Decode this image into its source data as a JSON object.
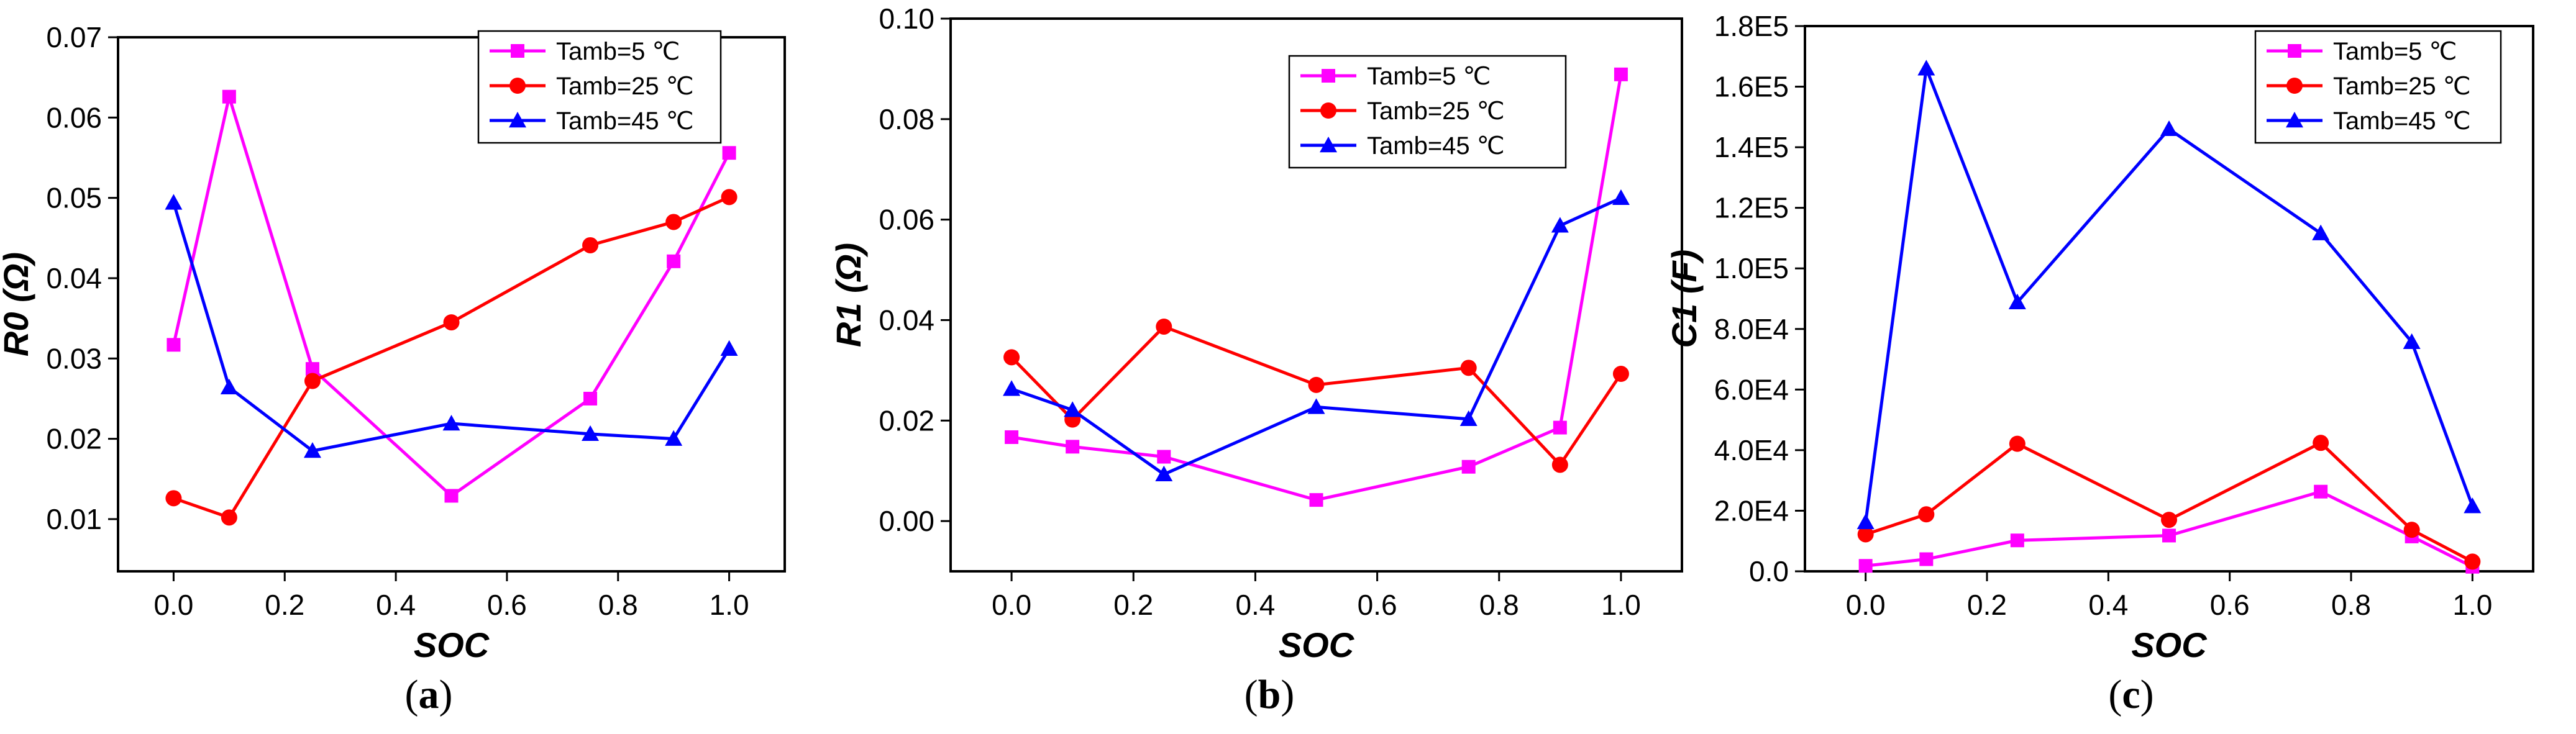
{
  "chart_data": [
    {
      "type": "line",
      "panel_label": "a",
      "xlabel": "SOC",
      "ylabel": "R0 (Ω)",
      "x": [
        0.0,
        0.1,
        0.25,
        0.5,
        0.75,
        0.9,
        1.0
      ],
      "xlim": [
        -0.1,
        1.1
      ],
      "ylim": [
        0.0035,
        0.07
      ],
      "xticks": [
        0.0,
        0.2,
        0.4,
        0.6,
        0.8,
        1.0
      ],
      "xtick_labels": [
        "0.0",
        "0.2",
        "0.4",
        "0.6",
        "0.8",
        "1.0"
      ],
      "yticks": [
        0.01,
        0.02,
        0.03,
        0.04,
        0.05,
        0.06,
        0.07
      ],
      "ytick_labels": [
        "0.01",
        "0.02",
        "0.03",
        "0.04",
        "0.05",
        "0.06",
        "0.07"
      ],
      "legend_position": "top-right",
      "grid": false,
      "series": [
        {
          "name": "Tamb=5 ℃",
          "color": "#ff00ff",
          "marker": "square",
          "values": [
            0.0317,
            0.0626,
            0.0287,
            0.0129,
            0.025,
            0.0421,
            0.0556
          ]
        },
        {
          "name": "Tamb=25 ℃",
          "color": "#ff0000",
          "marker": "circle",
          "values": [
            0.0126,
            0.0102,
            0.0272,
            0.0345,
            0.0441,
            0.047,
            0.0501
          ]
        },
        {
          "name": "Tamb=45 ℃",
          "color": "#0000ff",
          "marker": "triangle",
          "values": [
            0.0494,
            0.0264,
            0.0185,
            0.0219,
            0.0206,
            0.02,
            0.0312
          ]
        }
      ]
    },
    {
      "type": "line",
      "panel_label": "b",
      "xlabel": "SOC",
      "ylabel": "R1 (Ω)",
      "x": [
        0.0,
        0.1,
        0.25,
        0.5,
        0.75,
        0.9,
        1.0
      ],
      "xlim": [
        -0.1,
        1.1
      ],
      "ylim": [
        -0.01,
        0.1
      ],
      "xticks": [
        0.0,
        0.2,
        0.4,
        0.6,
        0.8,
        1.0
      ],
      "xtick_labels": [
        "0.0",
        "0.2",
        "0.4",
        "0.6",
        "0.8",
        "1.0"
      ],
      "yticks": [
        0.0,
        0.02,
        0.04,
        0.06,
        0.08,
        0.1
      ],
      "ytick_labels": [
        "0.00",
        "0.02",
        "0.04",
        "0.06",
        "0.08",
        "0.10"
      ],
      "legend_position": "top-right",
      "grid": false,
      "series": [
        {
          "name": "Tamb=5 ℃",
          "color": "#ff00ff",
          "marker": "square",
          "values": [
            0.0167,
            0.0148,
            0.0128,
            0.0042,
            0.0108,
            0.0186,
            0.0889
          ]
        },
        {
          "name": "Tamb=25 ℃",
          "color": "#ff0000",
          "marker": "circle",
          "values": [
            0.0326,
            0.0202,
            0.0387,
            0.0271,
            0.0305,
            0.0112,
            0.0293
          ]
        },
        {
          "name": "Tamb=45 ℃",
          "color": "#0000ff",
          "marker": "triangle",
          "values": [
            0.0263,
            0.0221,
            0.0093,
            0.0227,
            0.0203,
            0.0588,
            0.0643
          ]
        }
      ]
    },
    {
      "type": "line",
      "panel_label": "c",
      "xlabel": "SOC",
      "ylabel": "C1 (F)",
      "x": [
        0.0,
        0.1,
        0.25,
        0.5,
        0.75,
        0.9,
        1.0
      ],
      "xlim": [
        -0.1,
        1.1
      ],
      "ylim": [
        0,
        180000
      ],
      "xticks": [
        0.0,
        0.2,
        0.4,
        0.6,
        0.8,
        1.0
      ],
      "xtick_labels": [
        "0.0",
        "0.2",
        "0.4",
        "0.6",
        "0.8",
        "1.0"
      ],
      "yticks": [
        0,
        20000,
        40000,
        60000,
        80000,
        100000,
        120000,
        140000,
        160000,
        180000
      ],
      "ytick_labels": [
        "0.0",
        "2.0E4",
        "4.0E4",
        "6.0E4",
        "8.0E4",
        "1.0E5",
        "1.2E5",
        "1.4E5",
        "1.6E5",
        "1.8E5"
      ],
      "legend_position": "top-right",
      "grid": false,
      "series": [
        {
          "name": "Tamb=5 ℃",
          "color": "#ff00ff",
          "marker": "square",
          "values": [
            1800,
            4000,
            10200,
            11800,
            26300,
            11500,
            1500
          ]
        },
        {
          "name": "Tamb=25 ℃",
          "color": "#ff0000",
          "marker": "circle",
          "values": [
            12200,
            18800,
            42100,
            17000,
            42400,
            13700,
            3200
          ]
        },
        {
          "name": "Tamb=45 ℃",
          "color": "#0000ff",
          "marker": "triangle",
          "values": [
            16200,
            166000,
            88800,
            146000,
            111600,
            75700,
            21500
          ]
        }
      ]
    }
  ]
}
